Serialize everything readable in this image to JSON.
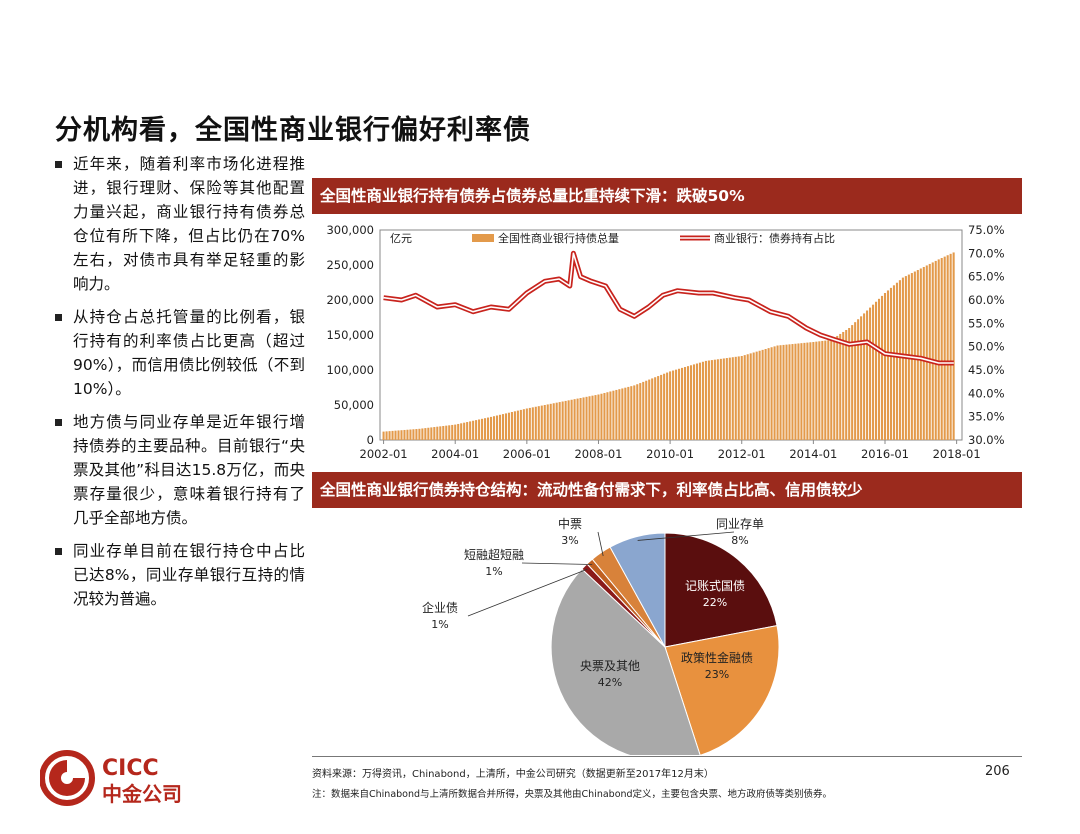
{
  "page": {
    "title": "分机构看，全国性商业银行偏好利率债",
    "bullets": [
      "近年来，随着利率市场化进程推进，银行理财、保险等其他配置力量兴起，商业银行持有债券总仓位有所下降，但占比仍在70%左右，对债市具有举足轻重的影响力。",
      "从持仓占总托管量的比例看，银行持有的利率债占比更高（超过90%），而信用债比例较低（不到10%）。",
      "地方债与同业存单是近年银行增持债券的主要品种。目前银行“央票及其他”科目达15.8万亿，而央票存量很少，意味着银行持有了几乎全部地方债。",
      "同业存单目前在银行持仓中占比已达8%，同业存单银行互持的情况较为普遍。"
    ],
    "chart1_header": "全国性商业银行持有债券占债券总量比重持续下滑：跌破50%",
    "chart2_header": "全国性商业银行债券持仓结构：流动性备付需求下，利率债占比高、信用债较少",
    "footer": {
      "source": "资料来源：万得资讯，Chinabond，上清所，中金公司研究（数据更新至2017年12月末）",
      "note": "注：数据来自Chinabond与上清所数据合并所得，央票及其他由Chinabond定义，主要包含央票、地方政府债等类别债券。",
      "page_number": "206"
    },
    "logo": {
      "text_en": "CICC",
      "text_cn": "中金公司",
      "color": "#b5271c"
    }
  },
  "chart_data": [
    {
      "type": "bar+line",
      "unit_label": "亿元",
      "legend_position": "top",
      "y_left": {
        "range": [
          0,
          300000
        ],
        "ticks": [
          "0",
          "50,000",
          "100,000",
          "150,000",
          "200,000",
          "250,000",
          "300,000"
        ]
      },
      "y_right": {
        "range": [
          30,
          75
        ],
        "ticks": [
          "30.0%",
          "35.0%",
          "40.0%",
          "45.0%",
          "50.0%",
          "55.0%",
          "60.0%",
          "65.0%",
          "70.0%",
          "75.0%"
        ]
      },
      "x_ticks": [
        "2002-01",
        "2004-01",
        "2006-01",
        "2008-01",
        "2010-01",
        "2012-01",
        "2014-01",
        "2016-01",
        "2018-01"
      ],
      "series": [
        {
          "name": "全国性商业银行持债总量",
          "type": "bar",
          "axis": "left",
          "color": "#e39a4b",
          "x": [
            2002.0,
            2003.0,
            2004.0,
            2005.0,
            2006.0,
            2007.0,
            2008.0,
            2009.0,
            2010.0,
            2011.0,
            2012.0,
            2013.0,
            2014.0,
            2014.5,
            2015.0,
            2015.5,
            2016.0,
            2016.5,
            2017.0,
            2017.5,
            2017.92
          ],
          "values": [
            12000,
            16000,
            22000,
            33000,
            45000,
            55000,
            65000,
            78000,
            98000,
            113000,
            120000,
            135000,
            140000,
            143000,
            160000,
            185000,
            210000,
            232000,
            245000,
            258000,
            268000
          ]
        },
        {
          "name": "商业银行：债券持有占比",
          "type": "line",
          "axis": "right",
          "color": "#c8231d",
          "x": [
            2002.0,
            2002.5,
            2002.9,
            2003.5,
            2004.0,
            2004.5,
            2005.0,
            2005.5,
            2006.0,
            2006.5,
            2006.9,
            2007.2,
            2007.3,
            2007.5,
            2007.8,
            2008.2,
            2008.6,
            2009.0,
            2009.4,
            2009.8,
            2010.2,
            2010.8,
            2011.2,
            2011.8,
            2012.2,
            2012.8,
            2013.3,
            2013.8,
            2014.2,
            2014.6,
            2015.0,
            2015.5,
            2016.0,
            2016.5,
            2017.0,
            2017.5,
            2017.92
          ],
          "values": [
            60.5,
            60.0,
            61.0,
            58.5,
            59.0,
            57.5,
            58.5,
            58.0,
            61.5,
            64.0,
            64.5,
            63.0,
            70.0,
            65.0,
            64.0,
            63.0,
            58.0,
            56.5,
            58.5,
            61.0,
            62.0,
            61.5,
            61.5,
            60.5,
            60.0,
            57.5,
            56.5,
            54.0,
            52.5,
            51.5,
            50.5,
            51.0,
            48.5,
            48.0,
            47.5,
            46.5,
            46.5
          ]
        }
      ]
    },
    {
      "type": "pie",
      "slices": [
        {
          "label": "记账式国债",
          "value": 22,
          "pct_label": "22%",
          "color": "#5a0e0e"
        },
        {
          "label": "政策性金融债",
          "value": 23,
          "pct_label": "23%",
          "color": "#e8913e"
        },
        {
          "label": "央票及其他",
          "value": 42,
          "pct_label": "42%",
          "color": "#a9a9a9"
        },
        {
          "label": "企业债",
          "value": 1,
          "pct_label": "1%",
          "color": "#8b1a1a"
        },
        {
          "label": "短融超短融",
          "value": 1,
          "pct_label": "1%",
          "color": "#c06020"
        },
        {
          "label": "中票",
          "value": 3,
          "pct_label": "3%",
          "color": "#d8823a"
        },
        {
          "label": "同业存单",
          "value": 8,
          "pct_label": "8%",
          "color": "#8aa6cf"
        }
      ]
    }
  ]
}
